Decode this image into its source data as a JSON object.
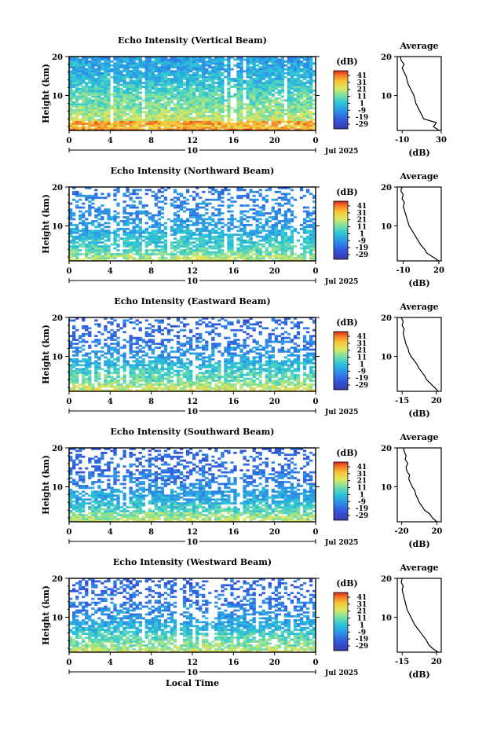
{
  "chart_data": [
    {
      "type": "heatmap",
      "title": "Echo Intensity (Vertical Beam)",
      "xlabel": "",
      "ylabel": "Height (km)",
      "x_ticks": [
        "0",
        "4",
        "8",
        "12",
        "16",
        "20",
        "0"
      ],
      "y_ticks": [
        "20",
        "10"
      ],
      "xlim": [
        0,
        24
      ],
      "ylim": [
        1,
        20
      ],
      "date_label": "Jul 2025",
      "day_label": "10",
      "colorbar": {
        "title": "(dB)",
        "ticks": [
          "41",
          "31",
          "21",
          "11",
          "1",
          "-9",
          "-19",
          "-29"
        ],
        "range": [
          -29,
          41
        ]
      },
      "profile": {
        "title": "Average",
        "xlabel": "(dB)",
        "x_ticks": [
          "-10",
          "30"
        ],
        "y_ticks": [
          "20",
          "10"
        ],
        "xlim": [
          -15,
          30
        ],
        "heights": [
          1,
          2,
          3,
          4,
          5,
          6,
          7,
          8,
          9,
          10,
          11,
          12,
          13,
          14,
          15,
          16,
          17,
          18,
          19,
          20
        ],
        "values": [
          28,
          22,
          25,
          12,
          10,
          8,
          6,
          4,
          3,
          2,
          0,
          -2,
          -4,
          -5,
          -6,
          -8,
          -10,
          -8,
          -11,
          -12
        ]
      }
    },
    {
      "type": "heatmap",
      "title": "Echo Intensity (Northward Beam)",
      "xlabel": "",
      "ylabel": "Height (km)",
      "x_ticks": [
        "0",
        "4",
        "8",
        "12",
        "16",
        "20",
        "0"
      ],
      "y_ticks": [
        "20",
        "10"
      ],
      "xlim": [
        0,
        24
      ],
      "ylim": [
        1,
        20
      ],
      "date_label": "Jul 2025",
      "day_label": "10",
      "colorbar": {
        "title": "(dB)",
        "ticks": [
          "41",
          "31",
          "21",
          "11",
          "1",
          "-9",
          "-19",
          "-29"
        ],
        "range": [
          -29,
          41
        ]
      },
      "profile": {
        "title": "Average",
        "xlabel": "(dB)",
        "x_ticks": [
          "-10",
          "20"
        ],
        "y_ticks": [
          "20",
          "10"
        ],
        "xlim": [
          -15,
          22
        ],
        "heights": [
          1,
          2,
          3,
          4,
          5,
          6,
          7,
          8,
          9,
          10,
          11,
          12,
          13,
          14,
          15,
          16,
          17,
          18,
          19,
          20
        ],
        "values": [
          20,
          15,
          10,
          8,
          5,
          3,
          1,
          -1,
          -3,
          -5,
          -6,
          -7,
          -8,
          -9,
          -10,
          -9,
          -11,
          -10,
          -12,
          -11
        ]
      }
    },
    {
      "type": "heatmap",
      "title": "Echo Intensity (Eastward Beam)",
      "xlabel": "",
      "ylabel": "Height (km)",
      "x_ticks": [
        "0",
        "4",
        "8",
        "12",
        "16",
        "20",
        "0"
      ],
      "y_ticks": [
        "20",
        "10"
      ],
      "xlim": [
        0,
        24
      ],
      "ylim": [
        1,
        20
      ],
      "date_label": "Jul 2025",
      "day_label": "10",
      "colorbar": {
        "title": "(dB)",
        "ticks": [
          "41",
          "31",
          "21",
          "11",
          "1",
          "-9",
          "-19",
          "-29"
        ],
        "range": [
          -29,
          41
        ]
      },
      "profile": {
        "title": "Average",
        "xlabel": "(dB)",
        "x_ticks": [
          "-15",
          "20"
        ],
        "y_ticks": [
          "20",
          "10"
        ],
        "xlim": [
          -20,
          25
        ],
        "heights": [
          1,
          2,
          3,
          4,
          5,
          6,
          7,
          8,
          9,
          10,
          11,
          12,
          13,
          14,
          15,
          16,
          17,
          18,
          19,
          20
        ],
        "values": [
          22,
          18,
          14,
          10,
          8,
          5,
          2,
          0,
          -3,
          -6,
          -8,
          -9,
          -11,
          -12,
          -13,
          -14,
          -13,
          -15,
          -14,
          -16
        ]
      }
    },
    {
      "type": "heatmap",
      "title": "Echo Intensity (Southward Beam)",
      "xlabel": "",
      "ylabel": "Height (km)",
      "x_ticks": [
        "0",
        "4",
        "8",
        "12",
        "16",
        "20",
        "0"
      ],
      "y_ticks": [
        "20",
        "10"
      ],
      "xlim": [
        0,
        24
      ],
      "ylim": [
        1,
        20
      ],
      "date_label": "Jul 2025",
      "day_label": "10",
      "colorbar": {
        "title": "(dB)",
        "ticks": [
          "41",
          "31",
          "21",
          "11",
          "1",
          "-9",
          "-19",
          "-29"
        ],
        "range": [
          -29,
          41
        ]
      },
      "profile": {
        "title": "Average",
        "xlabel": "(dB)",
        "x_ticks": [
          "-20",
          "20"
        ],
        "y_ticks": [
          "20",
          "10"
        ],
        "xlim": [
          -25,
          25
        ],
        "heights": [
          1,
          2,
          3,
          4,
          5,
          6,
          7,
          8,
          9,
          10,
          11,
          12,
          13,
          14,
          15,
          16,
          17,
          18,
          19,
          20
        ],
        "values": [
          20,
          15,
          12,
          6,
          3,
          0,
          -2,
          -4,
          -5,
          -8,
          -10,
          -12,
          -11,
          -14,
          -15,
          -13,
          -16,
          -15,
          -17,
          -18
        ]
      }
    },
    {
      "type": "heatmap",
      "title": "Echo Intensity (Westward Beam)",
      "xlabel": "Local Time",
      "ylabel": "Height (km)",
      "x_ticks": [
        "0",
        "4",
        "8",
        "12",
        "16",
        "20",
        "0"
      ],
      "y_ticks": [
        "20",
        "10"
      ],
      "xlim": [
        0,
        24
      ],
      "ylim": [
        1,
        20
      ],
      "date_label": "Jul 2025",
      "day_label": "10",
      "colorbar": {
        "title": "(dB)",
        "ticks": [
          "41",
          "31",
          "21",
          "11",
          "1",
          "-9",
          "-19",
          "-29"
        ],
        "range": [
          -29,
          41
        ]
      },
      "profile": {
        "title": "Average",
        "xlabel": "(dB)",
        "x_ticks": [
          "-15",
          "20"
        ],
        "y_ticks": [
          "20",
          "10"
        ],
        "xlim": [
          -20,
          25
        ],
        "heights": [
          1,
          2,
          3,
          4,
          5,
          6,
          7,
          8,
          9,
          10,
          11,
          12,
          13,
          14,
          15,
          16,
          17,
          18,
          19,
          20
        ],
        "values": [
          22,
          16,
          12,
          10,
          7,
          4,
          1,
          -2,
          -4,
          -6,
          -8,
          -10,
          -11,
          -12,
          -13,
          -14,
          -15,
          -14,
          -16,
          -15
        ]
      }
    }
  ]
}
